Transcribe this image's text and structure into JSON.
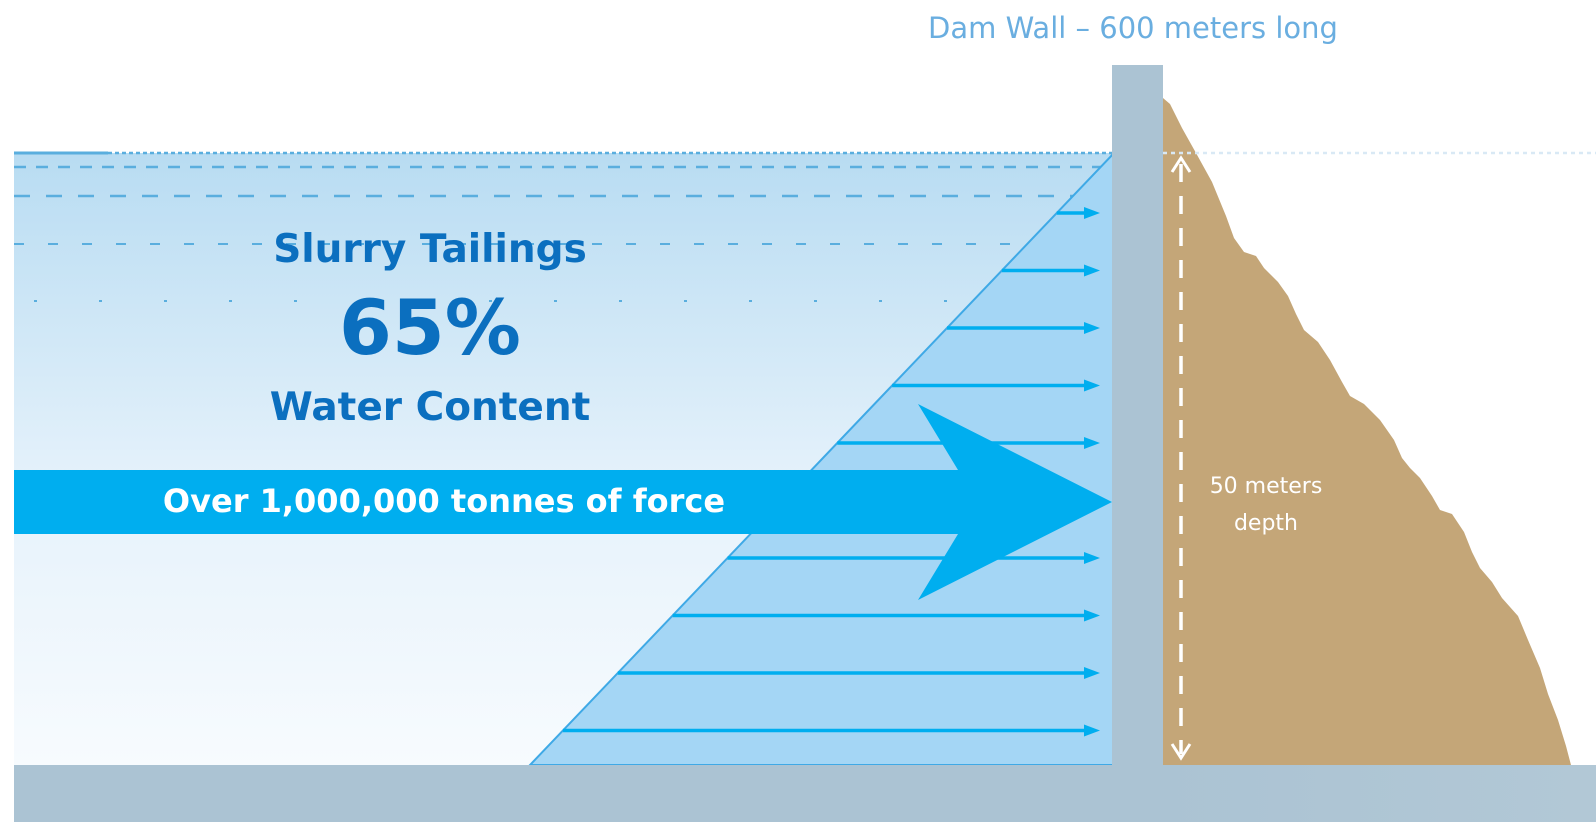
{
  "title": "Dam Wall – 600 meters long",
  "material": {
    "name": "Slurry Tailings",
    "percentage": "65%",
    "descriptor": "Water Content"
  },
  "force_label": "Over 1,000,000 tonnes of force",
  "depth_label": {
    "line1": "50 meters",
    "line2": "depth"
  },
  "colors": {
    "water_top": "#b8dcf2",
    "water_bottom": "#f7fbfe",
    "pressure_fill": "#a4d6f5",
    "arrow": "#00aeef",
    "dam_wall": "#abc3d3",
    "ground": "#abc3d3",
    "embankment": "#c4a678",
    "text_blue": "#0b6fbf",
    "title_blue": "#6aaee0"
  }
}
